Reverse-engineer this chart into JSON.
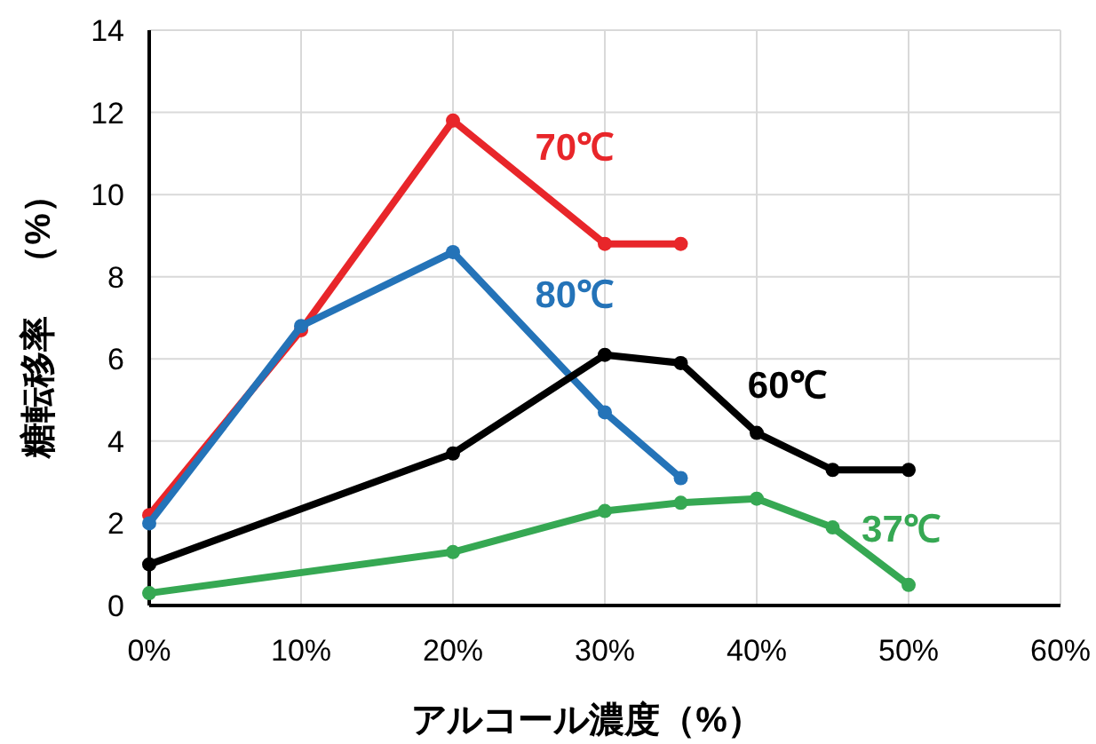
{
  "chart_data": {
    "type": "line",
    "xlabel": "アルコール濃度（%）",
    "ylabel": "糖転移率　（%）",
    "xlim": [
      0,
      60
    ],
    "xticks": [
      {
        "value": 0,
        "label": "0%"
      },
      {
        "value": 10,
        "label": "10%"
      },
      {
        "value": 20,
        "label": "20%"
      },
      {
        "value": 30,
        "label": "30%"
      },
      {
        "value": 40,
        "label": "40%"
      },
      {
        "value": 50,
        "label": "50%"
      },
      {
        "value": 60,
        "label": "60%"
      }
    ],
    "ylim": [
      0,
      14
    ],
    "yticks": [
      0,
      2,
      4,
      6,
      8,
      10,
      12,
      14
    ],
    "grid": true,
    "marker": "circle",
    "line_style": "solid",
    "series": [
      {
        "name": "70℃",
        "color": "#e8262a",
        "x": [
          0,
          10,
          20,
          30,
          35
        ],
        "values": [
          2.2,
          6.7,
          11.8,
          8.8,
          8.8
        ]
      },
      {
        "name": "80℃",
        "color": "#2473b8",
        "x": [
          0,
          10,
          20,
          30,
          35
        ],
        "values": [
          2.0,
          6.8,
          8.6,
          4.7,
          3.1
        ]
      },
      {
        "name": "60℃",
        "color": "#000000",
        "x": [
          0,
          20,
          30,
          35,
          40,
          45,
          50
        ],
        "values": [
          1.0,
          3.7,
          6.1,
          5.9,
          4.2,
          3.3,
          3.3
        ]
      },
      {
        "name": "37℃",
        "color": "#36a853",
        "x": [
          0,
          20,
          30,
          35,
          40,
          45,
          50
        ],
        "values": [
          0.3,
          1.3,
          2.3,
          2.5,
          2.6,
          1.9,
          0.5
        ]
      }
    ]
  }
}
